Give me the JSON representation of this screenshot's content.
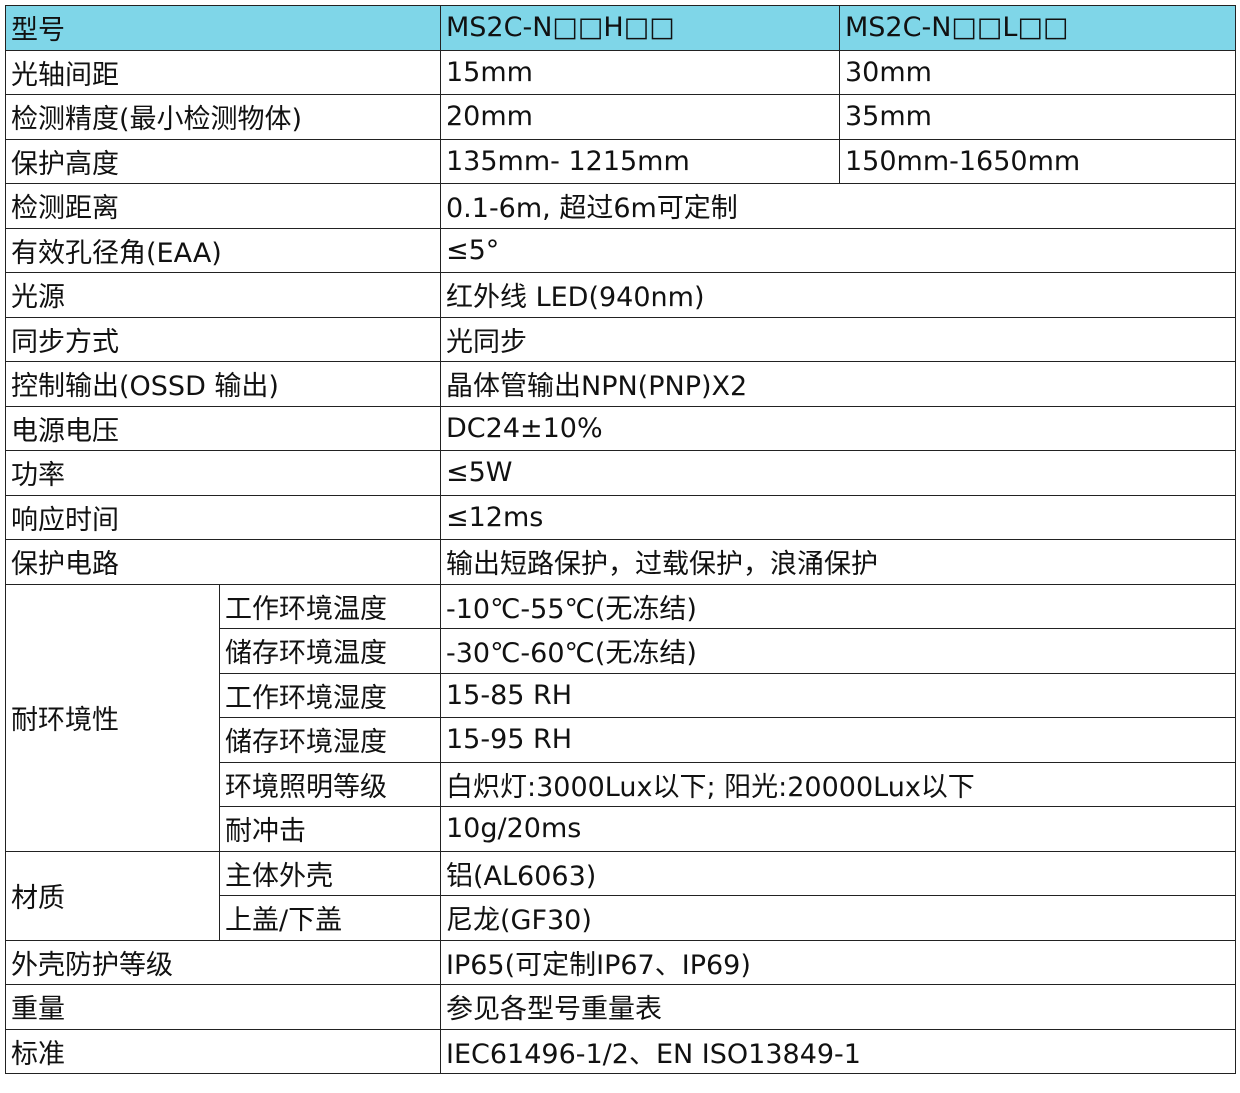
{
  "header": {
    "c1": "型号",
    "c2": "MS2C-N□□H□□",
    "c3": "MS2C-N□□L□□"
  },
  "rows3": [
    {
      "label": "光轴间距",
      "h": "15mm",
      "l": "30mm"
    },
    {
      "label": "检测精度(最小检测物体)",
      "h": "20mm",
      "l": "35mm"
    },
    {
      "label": "保护高度",
      "h": "135mm- 1215mm",
      "l": "150mm-1650mm"
    }
  ],
  "rows2": [
    {
      "label": "检测距离",
      "value": "0.1-6m, 超过6m可定制"
    },
    {
      "label": "有效孔径角(EAA)",
      "value": "≤5°"
    },
    {
      "label": "光源",
      "value": "红外线 LED(940nm)"
    },
    {
      "label": "同步方式",
      "value": "光同步"
    },
    {
      "label": "控制输出(OSSD 输出)",
      "value": "晶体管输出NPN(PNP)X2"
    },
    {
      "label": "电源电压",
      "value": "DC24±10%"
    },
    {
      "label": "功率",
      "value": "≤5W"
    },
    {
      "label": "响应时间",
      "value": "≤12ms"
    },
    {
      "label": "保护电路",
      "value": "输出短路保护，过载保护，浪涌保护"
    }
  ],
  "env": {
    "label": "耐环境性",
    "items": [
      {
        "label": "工作环境温度",
        "value": "-10℃-55℃(无冻结)"
      },
      {
        "label": "储存环境温度",
        "value": "-30℃-60℃(无冻结)"
      },
      {
        "label": "工作环境湿度",
        "value": "15-85 RH"
      },
      {
        "label": "储存环境湿度",
        "value": "15-95 RH"
      },
      {
        "label": "环境照明等级",
        "value": "白炽灯:3000Lux以下; 阳光:20000Lux以下"
      },
      {
        "label": "耐冲击",
        "value": "10g/20ms"
      }
    ]
  },
  "material": {
    "label": "材质",
    "items": [
      {
        "label": "主体外壳",
        "value": "铝(AL6063)"
      },
      {
        "label": "上盖/下盖",
        "value": "尼龙(GF30)"
      }
    ]
  },
  "rows_end": [
    {
      "label": "外壳防护等级",
      "value": "IP65(可定制IP67、IP69)"
    },
    {
      "label": "重量",
      "value": "参见各型号重量表"
    },
    {
      "label": "标准",
      "value": "IEC61496-1/2、EN ISO13849-1"
    }
  ],
  "colors": {
    "header_bg": "#7fd6e8",
    "border": "#222222"
  }
}
